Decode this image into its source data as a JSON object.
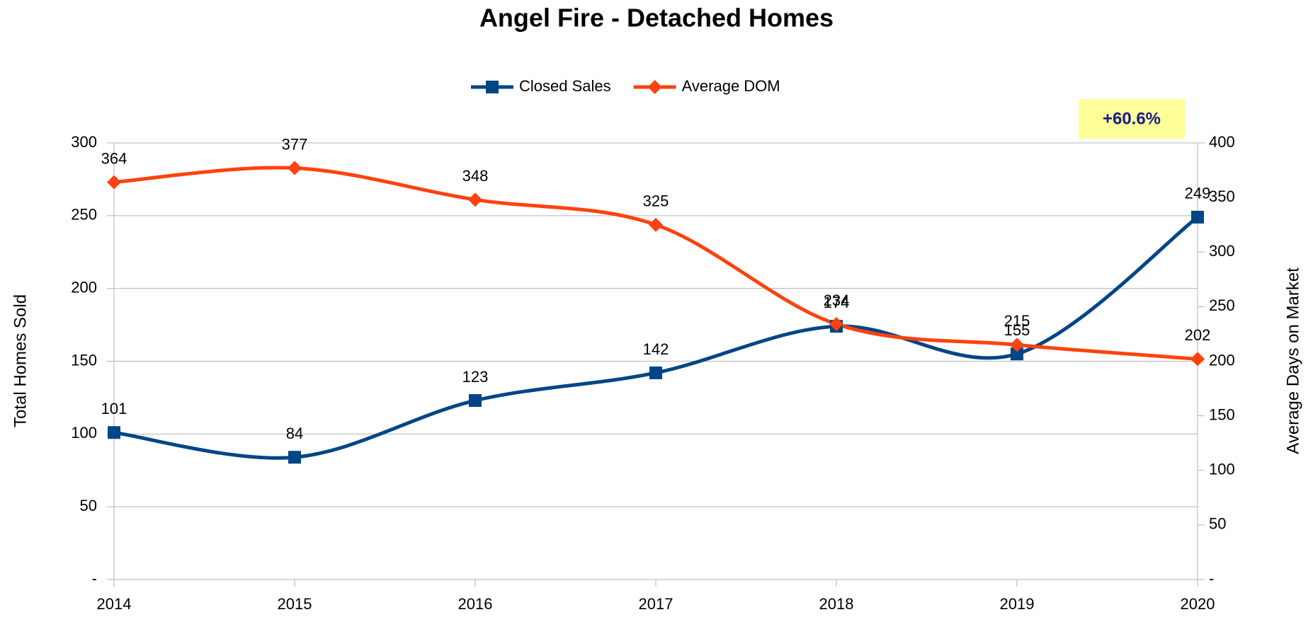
{
  "chart_data": {
    "type": "line",
    "title": "Angel Fire - Detached Homes",
    "categories": [
      "2014",
      "2015",
      "2016",
      "2017",
      "2018",
      "2019",
      "2020"
    ],
    "series": [
      {
        "name": "Closed Sales",
        "color": "#004586",
        "marker": "square",
        "values": [
          101,
          84,
          123,
          142,
          174,
          155,
          249
        ]
      },
      {
        "name": "Average DOM",
        "color": "#ff420e",
        "marker": "diamond",
        "axis": "y2",
        "values": [
          364,
          377,
          348,
          325,
          234,
          215,
          202
        ]
      }
    ],
    "ylabel": "Total Homes Sold",
    "y2label": "Average Days on Market",
    "ylim": [
      0,
      300
    ],
    "yticks": [
      {
        "value": 0,
        "label": "-"
      },
      50,
      100,
      150,
      200,
      250,
      300
    ],
    "y2lim": [
      0,
      400
    ],
    "y2ticks": [
      {
        "value": 0,
        "label": "-"
      },
      50,
      100,
      150,
      200,
      250,
      300,
      350,
      400
    ],
    "annotation": "+60.6%",
    "grid": true,
    "legend": "top",
    "smooth": true
  }
}
